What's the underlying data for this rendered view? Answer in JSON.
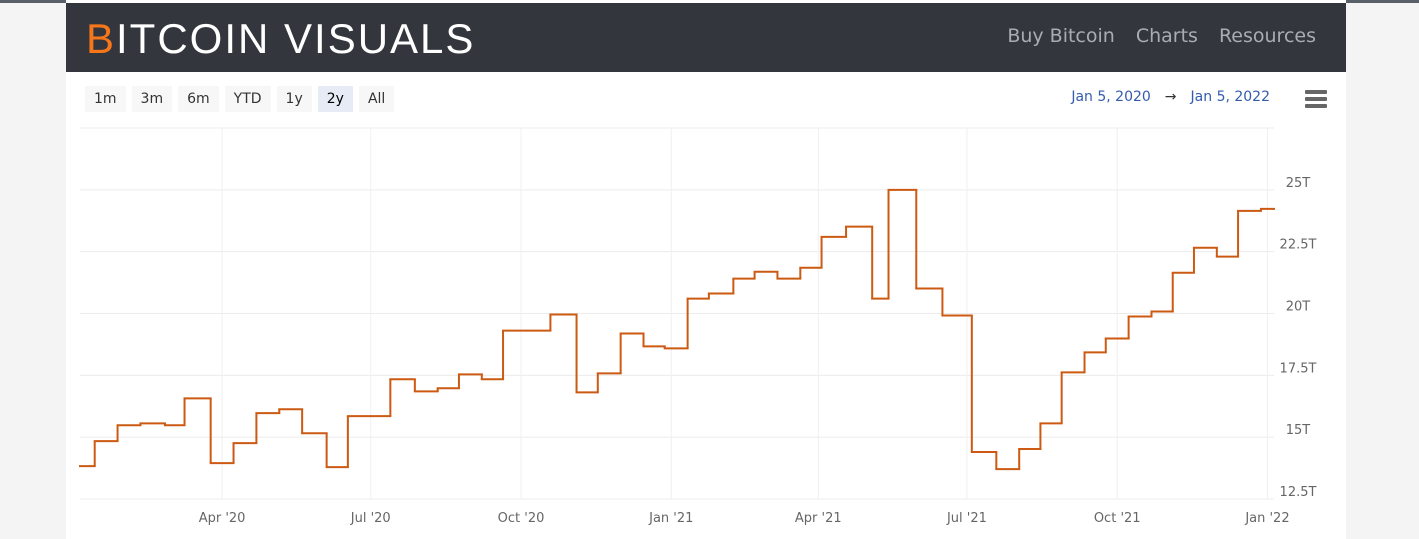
{
  "header": {
    "logo_first": "B",
    "logo_rest": "ITCOIN VISUALS",
    "nav": [
      "Buy Bitcoin",
      "Charts",
      "Resources"
    ]
  },
  "range_selector": {
    "buttons": [
      "1m",
      "3m",
      "6m",
      "YTD",
      "1y",
      "2y",
      "All"
    ],
    "selected": 5
  },
  "date_range": {
    "from": "Jan 5, 2020",
    "arrow": "→",
    "to": "Jan 5, 2022"
  },
  "chart_data": {
    "type": "step",
    "color": "#cc5a12",
    "grid": true,
    "x": [
      "2020-01-05",
      "2020-01-14",
      "2020-01-28",
      "2020-02-11",
      "2020-02-26",
      "2020-03-09",
      "2020-03-25",
      "2020-04-08",
      "2020-04-22",
      "2020-05-06",
      "2020-05-20",
      "2020-06-04",
      "2020-06-17",
      "2020-07-13",
      "2020-07-28",
      "2020-08-11",
      "2020-08-24",
      "2020-09-07",
      "2020-09-20",
      "2020-10-19",
      "2020-11-04",
      "2020-11-17",
      "2020-12-01",
      "2020-12-15",
      "2020-12-28",
      "2021-01-11",
      "2021-01-24",
      "2021-02-08",
      "2021-02-21",
      "2021-03-07",
      "2021-03-21",
      "2021-04-03",
      "2021-04-18",
      "2021-05-04",
      "2021-05-14",
      "2021-05-31",
      "2021-06-16",
      "2021-07-04",
      "2021-07-19",
      "2021-08-02",
      "2021-08-15",
      "2021-08-28",
      "2021-09-11",
      "2021-09-24",
      "2021-10-08",
      "2021-10-22",
      "2021-11-04",
      "2021-11-17",
      "2021-12-01",
      "2021-12-14",
      "2021-12-28"
    ],
    "values": [
      13.83,
      14.84,
      15.48,
      15.56,
      15.48,
      16.57,
      13.95,
      14.76,
      15.97,
      16.13,
      15.16,
      13.79,
      15.85,
      17.34,
      16.85,
      16.98,
      17.54,
      17.34,
      19.31,
      19.96,
      16.81,
      17.58,
      19.19,
      18.67,
      18.59,
      20.6,
      20.81,
      21.41,
      21.69,
      21.41,
      21.85,
      23.1,
      23.51,
      20.6,
      25.0,
      21.01,
      19.92,
      14.4,
      13.71,
      14.52,
      15.56,
      17.62,
      18.43,
      18.99,
      19.88,
      20.08,
      21.65,
      22.66,
      22.3,
      24.15,
      24.23
    ],
    "xlim": [
      "2020-01-05",
      "2022-01-05"
    ],
    "xticks": [
      {
        "value": "2020-04-01",
        "label": "Apr '20"
      },
      {
        "value": "2020-07-01",
        "label": "Jul '20"
      },
      {
        "value": "2020-10-01",
        "label": "Oct '20"
      },
      {
        "value": "2021-01-01",
        "label": "Jan '21"
      },
      {
        "value": "2021-04-01",
        "label": "Apr '21"
      },
      {
        "value": "2021-07-01",
        "label": "Jul '21"
      },
      {
        "value": "2021-10-01",
        "label": "Oct '21"
      },
      {
        "value": "2022-01-01",
        "label": "Jan '22"
      }
    ],
    "ylim": [
      12.5,
      27.5
    ],
    "yticks": [
      {
        "value": 12.5,
        "label": "12.5T"
      },
      {
        "value": 15,
        "label": "15T"
      },
      {
        "value": 17.5,
        "label": "17.5T"
      },
      {
        "value": 20,
        "label": "20T"
      },
      {
        "value": 22.5,
        "label": "22.5T"
      },
      {
        "value": 25,
        "label": "25T"
      }
    ]
  }
}
